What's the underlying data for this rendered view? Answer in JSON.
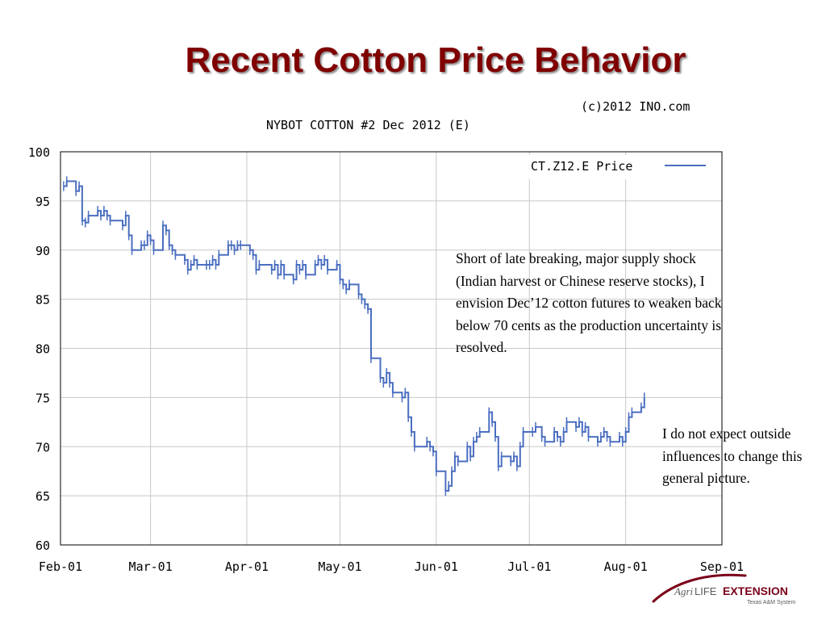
{
  "slide": {
    "title": "Recent Cotton Price Behavior",
    "note_1": "Short of late breaking, major supply shock (Indian harvest or Chinese reserve stocks), I envision Dec’12 cotton futures to weaken back below 70 cents as the production uncertainty is resolved.",
    "note_2": "I do not expect outside influences to change this general picture."
  },
  "logo": {
    "agri": "Agri",
    "life": "LIFE",
    "extension": "EXTENSION",
    "sub": "Texas A&M System",
    "colors": {
      "brand": "#7a0019",
      "gray": "#5a5a5a"
    }
  },
  "chart_data": {
    "type": "line",
    "title": "NYBOT COTTON #2 Dec 2012 (E)",
    "copyright": "(c)2012 INO.com",
    "xlabel": "",
    "ylabel": "",
    "ylim": [
      60,
      100
    ],
    "y_ticks": [
      60,
      65,
      70,
      75,
      80,
      85,
      90,
      95,
      100
    ],
    "x_ticks": [
      "Feb-01",
      "Mar-01",
      "Apr-01",
      "May-01",
      "Jun-01",
      "Jul-01",
      "Aug-01",
      "Sep-01"
    ],
    "x_domain": [
      "2012-02-01",
      "2012-09-01"
    ],
    "grid": true,
    "legend_position": "top-right",
    "series": [
      {
        "name": "CT.Z12.E Price",
        "color": "#4a6ec0",
        "points": [
          [
            "2012-02-02",
            96.5
          ],
          [
            "2012-02-03",
            97.0
          ],
          [
            "2012-02-06",
            96.0
          ],
          [
            "2012-02-07",
            96.5
          ],
          [
            "2012-02-08",
            93.0
          ],
          [
            "2012-02-09",
            92.8
          ],
          [
            "2012-02-10",
            93.5
          ],
          [
            "2012-02-13",
            94.0
          ],
          [
            "2012-02-14",
            93.5
          ],
          [
            "2012-02-15",
            94.0
          ],
          [
            "2012-02-16",
            93.5
          ],
          [
            "2012-02-17",
            93.0
          ],
          [
            "2012-02-21",
            92.5
          ],
          [
            "2012-02-22",
            93.5
          ],
          [
            "2012-02-23",
            91.5
          ],
          [
            "2012-02-24",
            90.0
          ],
          [
            "2012-02-27",
            90.5
          ],
          [
            "2012-02-28",
            90.5
          ],
          [
            "2012-02-29",
            91.5
          ],
          [
            "2012-03-01",
            91.0
          ],
          [
            "2012-03-02",
            90.0
          ],
          [
            "2012-03-05",
            92.5
          ],
          [
            "2012-03-06",
            92.0
          ],
          [
            "2012-03-07",
            90.5
          ],
          [
            "2012-03-08",
            90.0
          ],
          [
            "2012-03-09",
            89.5
          ],
          [
            "2012-03-12",
            89.0
          ],
          [
            "2012-03-13",
            88.0
          ],
          [
            "2012-03-14",
            88.5
          ],
          [
            "2012-03-15",
            89.0
          ],
          [
            "2012-03-16",
            88.5
          ],
          [
            "2012-03-19",
            88.5
          ],
          [
            "2012-03-20",
            88.5
          ],
          [
            "2012-03-21",
            89.0
          ],
          [
            "2012-03-22",
            88.5
          ],
          [
            "2012-03-23",
            89.5
          ],
          [
            "2012-03-26",
            90.5
          ],
          [
            "2012-03-27",
            90.5
          ],
          [
            "2012-03-28",
            90.0
          ],
          [
            "2012-03-29",
            90.5
          ],
          [
            "2012-03-30",
            90.5
          ],
          [
            "2012-04-02",
            90.0
          ],
          [
            "2012-04-03",
            89.5
          ],
          [
            "2012-04-04",
            88.0
          ],
          [
            "2012-04-05",
            88.5
          ],
          [
            "2012-04-09",
            88.0
          ],
          [
            "2012-04-10",
            88.5
          ],
          [
            "2012-04-11",
            87.5
          ],
          [
            "2012-04-12",
            88.5
          ],
          [
            "2012-04-13",
            87.5
          ],
          [
            "2012-04-16",
            87.0
          ],
          [
            "2012-04-17",
            88.5
          ],
          [
            "2012-04-18",
            88.0
          ],
          [
            "2012-04-19",
            88.5
          ],
          [
            "2012-04-20",
            87.5
          ],
          [
            "2012-04-23",
            88.5
          ],
          [
            "2012-04-24",
            89.0
          ],
          [
            "2012-04-25",
            88.5
          ],
          [
            "2012-04-26",
            89.0
          ],
          [
            "2012-04-27",
            88.0
          ],
          [
            "2012-04-30",
            88.5
          ],
          [
            "2012-05-01",
            87.0
          ],
          [
            "2012-05-02",
            86.5
          ],
          [
            "2012-05-03",
            86.0
          ],
          [
            "2012-05-04",
            86.5
          ],
          [
            "2012-05-07",
            85.5
          ],
          [
            "2012-05-08",
            85.0
          ],
          [
            "2012-05-09",
            84.5
          ],
          [
            "2012-05-10",
            84.0
          ],
          [
            "2012-05-11",
            79.0
          ],
          [
            "2012-05-14",
            77.0
          ],
          [
            "2012-05-15",
            76.5
          ],
          [
            "2012-05-16",
            77.5
          ],
          [
            "2012-05-17",
            76.5
          ],
          [
            "2012-05-18",
            75.5
          ],
          [
            "2012-05-21",
            75.0
          ],
          [
            "2012-05-22",
            75.5
          ],
          [
            "2012-05-23",
            73.0
          ],
          [
            "2012-05-24",
            71.5
          ],
          [
            "2012-05-25",
            70.0
          ],
          [
            "2012-05-29",
            70.5
          ],
          [
            "2012-05-30",
            70.0
          ],
          [
            "2012-05-31",
            69.5
          ],
          [
            "2012-06-01",
            67.5
          ],
          [
            "2012-06-04",
            65.5
          ],
          [
            "2012-06-05",
            66.0
          ],
          [
            "2012-06-06",
            67.5
          ],
          [
            "2012-06-07",
            69.0
          ],
          [
            "2012-06-08",
            68.5
          ],
          [
            "2012-06-11",
            70.0
          ],
          [
            "2012-06-12",
            69.0
          ],
          [
            "2012-06-13",
            70.5
          ],
          [
            "2012-06-14",
            71.0
          ],
          [
            "2012-06-15",
            71.5
          ],
          [
            "2012-06-18",
            73.5
          ],
          [
            "2012-06-19",
            72.5
          ],
          [
            "2012-06-20",
            71.0
          ],
          [
            "2012-06-21",
            68.0
          ],
          [
            "2012-06-22",
            69.0
          ],
          [
            "2012-06-25",
            68.5
          ],
          [
            "2012-06-26",
            69.0
          ],
          [
            "2012-06-27",
            68.0
          ],
          [
            "2012-06-28",
            70.0
          ],
          [
            "2012-06-29",
            71.5
          ],
          [
            "2012-07-02",
            71.5
          ],
          [
            "2012-07-03",
            72.0
          ],
          [
            "2012-07-05",
            71.0
          ],
          [
            "2012-07-06",
            70.5
          ],
          [
            "2012-07-09",
            71.5
          ],
          [
            "2012-07-10",
            71.0
          ],
          [
            "2012-07-11",
            70.5
          ],
          [
            "2012-07-12",
            71.5
          ],
          [
            "2012-07-13",
            72.5
          ],
          [
            "2012-07-16",
            72.0
          ],
          [
            "2012-07-17",
            72.5
          ],
          [
            "2012-07-18",
            71.5
          ],
          [
            "2012-07-19",
            72.0
          ],
          [
            "2012-07-20",
            71.0
          ],
          [
            "2012-07-23",
            70.5
          ],
          [
            "2012-07-24",
            71.0
          ],
          [
            "2012-07-25",
            71.5
          ],
          [
            "2012-07-26",
            71.0
          ],
          [
            "2012-07-27",
            70.5
          ],
          [
            "2012-07-30",
            71.0
          ],
          [
            "2012-07-31",
            70.5
          ],
          [
            "2012-08-01",
            71.5
          ],
          [
            "2012-08-02",
            73.0
          ],
          [
            "2012-08-03",
            73.5
          ],
          [
            "2012-08-06",
            74.0
          ],
          [
            "2012-08-07",
            75.0
          ]
        ]
      }
    ]
  }
}
